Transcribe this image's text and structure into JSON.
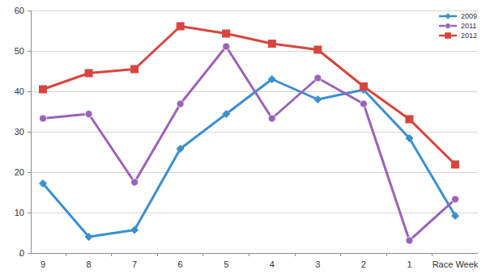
{
  "chart_data": {
    "type": "line",
    "categories": [
      "9",
      "8",
      "7",
      "6",
      "5",
      "4",
      "3",
      "2",
      "1",
      "Race Week"
    ],
    "series": [
      {
        "name": "2009",
        "color": "#3a8fd0",
        "marker": "diamond",
        "values": [
          17.2,
          4,
          5.7,
          25.8,
          34.4,
          43,
          38,
          40.4,
          28.4,
          9.2
        ]
      },
      {
        "name": "2011",
        "color": "#9a62b8",
        "marker": "circle",
        "values": [
          33.3,
          34.4,
          17.5,
          36.9,
          51.1,
          33.3,
          43.3,
          36.9,
          3.1,
          13.3
        ]
      },
      {
        "name": "2012",
        "color": "#d9443e",
        "marker": "square",
        "values": [
          40.5,
          44.5,
          45.5,
          56.1,
          54.3,
          51.8,
          50.3,
          41.2,
          33.1,
          21.9
        ]
      }
    ],
    "ylim": [
      0,
      60
    ],
    "yticks": [
      0,
      10,
      20,
      30,
      40,
      50,
      60
    ],
    "grid": true,
    "legend": "top-right"
  }
}
